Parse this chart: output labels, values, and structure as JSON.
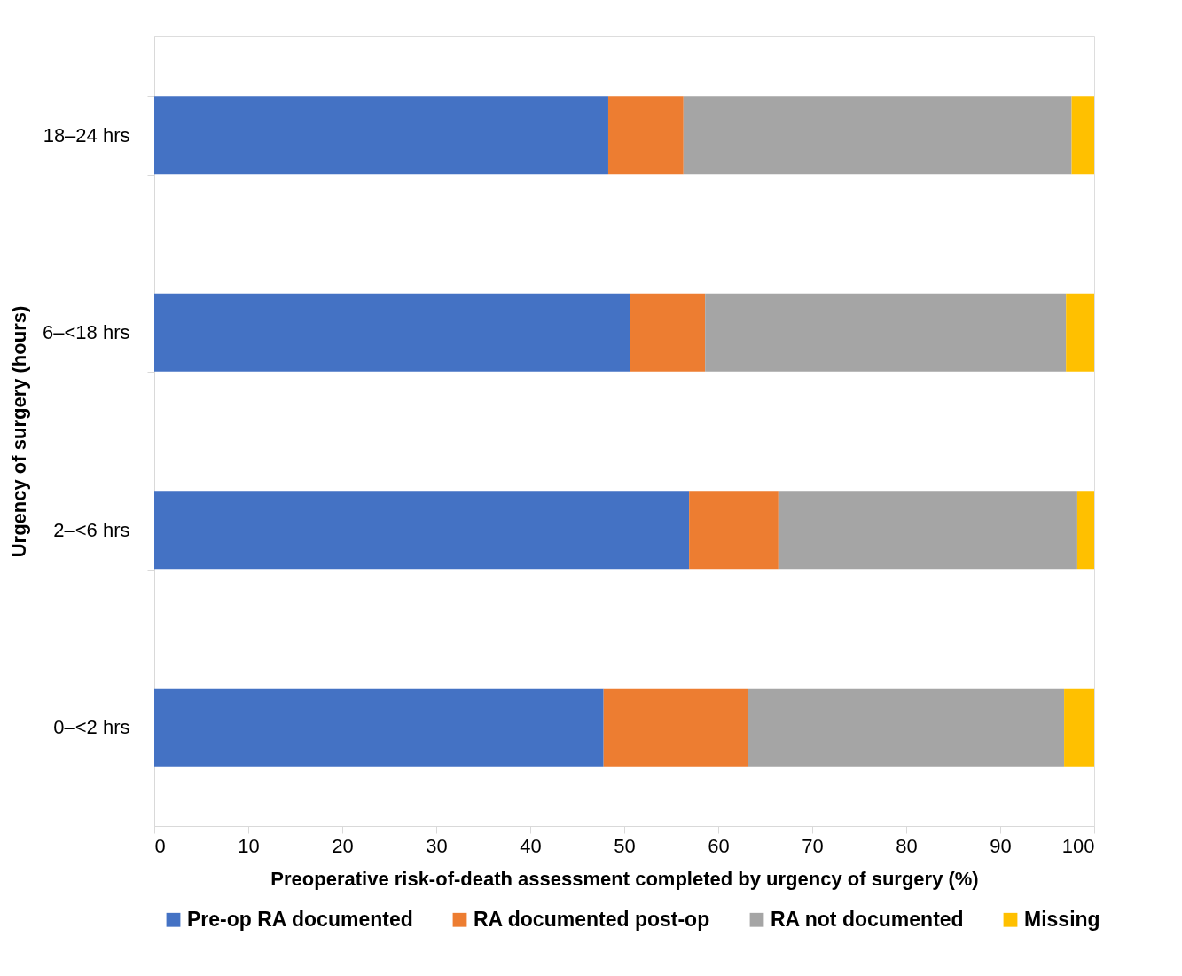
{
  "chart_data": {
    "type": "bar",
    "orientation": "horizontal",
    "stacked": true,
    "xlabel": "Preoperative risk-of-death assessment completed by urgency of surgery (%)",
    "ylabel": "Urgency of surgery (hours)",
    "categories": [
      "18–24 hrs",
      "6–<18 hrs",
      "2–<6 hrs",
      "0–<2 hrs"
    ],
    "series": [
      {
        "name": "Pre-op RA documented",
        "color": "#4472c4",
        "values": [
          48.3,
          50.6,
          56.9,
          47.8
        ]
      },
      {
        "name": "RA documented post-op",
        "color": "#ed7d31",
        "values": [
          8.0,
          8.0,
          9.5,
          15.4
        ]
      },
      {
        "name": "RA not documented",
        "color": "#a5a5a5",
        "values": [
          41.3,
          38.4,
          31.8,
          33.6
        ]
      },
      {
        "name": "Missing",
        "color": "#ffc000",
        "values": [
          2.4,
          3.0,
          1.8,
          3.2
        ]
      }
    ],
    "xlim": [
      0,
      100
    ],
    "xticks": [
      0,
      10,
      20,
      30,
      40,
      50,
      60,
      70,
      80,
      90,
      100
    ],
    "grid": false,
    "legend": "bottom"
  }
}
